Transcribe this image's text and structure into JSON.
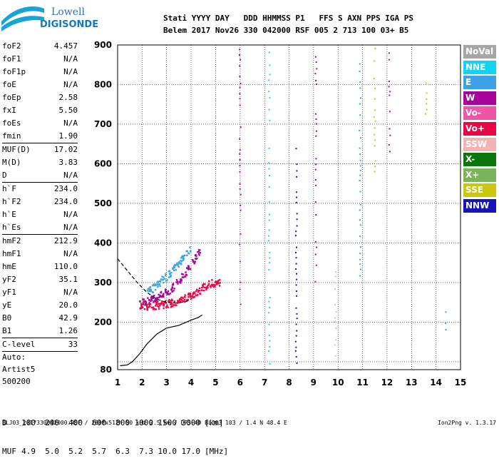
{
  "logo": {
    "line1": "Lowell",
    "line2": "DIGISONDE"
  },
  "header": {
    "line1": "Stati YYYY DAY   DDD HHMMSS P1   FFS S AXN PPS IGA PS",
    "line2": "Belem 2017 Nov26 330 042000 RSF 005 2 713 100 03+ B5"
  },
  "params": [
    {
      "name": "foF2",
      "value": "4.457"
    },
    {
      "name": "foF1",
      "value": "N/A"
    },
    {
      "name": "foF1p",
      "value": "N/A"
    },
    {
      "name": "foE",
      "value": "N/A"
    },
    {
      "name": "foEp",
      "value": "2.58"
    },
    {
      "name": "fxI",
      "value": "5.50"
    },
    {
      "name": "foEs",
      "value": "N/A"
    },
    {
      "name": "fmin",
      "value": "1.90"
    },
    {
      "sep": true
    },
    {
      "name": "MUF(D)",
      "value": "17.02"
    },
    {
      "name": "M(D)",
      "value": "3.83"
    },
    {
      "name": "D",
      "value": "N/A"
    },
    {
      "sep": true
    },
    {
      "name": "h`F",
      "value": "234.0"
    },
    {
      "name": "h`F2",
      "value": "234.0"
    },
    {
      "name": "h`E",
      "value": "N/A"
    },
    {
      "name": "h`Es",
      "value": "N/A"
    },
    {
      "sep": true
    },
    {
      "name": "hmF2",
      "value": "212.9"
    },
    {
      "name": "hmF1",
      "value": "N/A"
    },
    {
      "name": "hmE",
      "value": "110.0"
    },
    {
      "name": "yF2",
      "value": "35.1"
    },
    {
      "name": "yF1",
      "value": "N/A"
    },
    {
      "name": "yE",
      "value": "20.0"
    },
    {
      "name": "B0",
      "value": "42.9"
    },
    {
      "name": "B1",
      "value": "1.26"
    },
    {
      "sep": true
    },
    {
      "name": "C-level",
      "value": "33"
    },
    {
      "sep": true
    },
    {
      "text": "Auto:"
    },
    {
      "text": "Artist5"
    },
    {
      "text": "500200"
    }
  ],
  "legend": [
    {
      "label": "NoVal",
      "color": "#a6a6a6"
    },
    {
      "label": "NNE",
      "color": "#11d4f4"
    },
    {
      "label": "E",
      "color": "#3da1e6"
    },
    {
      "label": "W",
      "color": "#a6049b"
    },
    {
      "label": "Vo-",
      "color": "#f055a8"
    },
    {
      "label": "Vo+",
      "color": "#ea0644"
    },
    {
      "label": "SSW",
      "color": "#f2b3b3"
    },
    {
      "label": "X-",
      "color": "#0a760a"
    },
    {
      "label": "X+",
      "color": "#7ab55c"
    },
    {
      "label": "SSE",
      "color": "#c9c70e"
    },
    {
      "label": "NNW",
      "color": "#1414b8"
    }
  ],
  "dmuf": {
    "d_label": "D",
    "d_values": [
      "100",
      "200",
      "400",
      "600",
      "800",
      "1000",
      "1500",
      "3000"
    ],
    "d_unit": "[km]",
    "muf_label": "MUF",
    "muf_values": [
      "4.9",
      "5.0",
      "5.2",
      "5.7",
      "6.3",
      "7.3",
      "10.0",
      "17.0"
    ],
    "muf_unit": "[MHz]"
  },
  "footer": {
    "info": "BLJ03_2017330042000.RSF / 280fx512h 50 kHz 2.5 km / DPS-4D BLJ03 103 / 1.4 N 48.4 E",
    "version": "Ion2Png v. 1.3.17"
  },
  "chart_data": {
    "type": "scatter",
    "xlabel": "",
    "ylabel": "",
    "xlim": [
      1,
      15
    ],
    "ylim": [
      80,
      900
    ],
    "x_ticks": [
      1,
      2,
      3,
      4,
      5,
      6,
      7,
      8,
      9,
      10,
      11,
      12,
      13,
      14,
      15
    ],
    "y_ticks": [
      80,
      100,
      200,
      300,
      400,
      500,
      600,
      700,
      800,
      900
    ],
    "y_tick_labels": [
      80,
      200,
      300,
      400,
      500,
      600,
      700,
      800,
      900
    ],
    "grid": true,
    "legend_position": "right",
    "traces": [
      {
        "series": "Vo+",
        "color": "#ea0644",
        "x": [
          1.9,
          2.0,
          2.2,
          2.4,
          2.6,
          2.8,
          3.0,
          3.2,
          3.4,
          3.6,
          3.8,
          4.0,
          4.2,
          4.4,
          4.6,
          4.8,
          5.0,
          5.2
        ],
        "y": [
          240,
          236,
          234,
          236,
          238,
          240,
          242,
          244,
          246,
          250,
          256,
          262,
          270,
          278,
          286,
          292,
          296,
          298
        ]
      },
      {
        "series": "W",
        "color": "#a6049b",
        "x": [
          2.0,
          2.2,
          2.4,
          2.6,
          2.8,
          3.0,
          3.2,
          3.4,
          3.6,
          3.8,
          4.0,
          4.2,
          4.4
        ],
        "y": [
          244,
          248,
          252,
          258,
          264,
          270,
          280,
          292,
          306,
          322,
          340,
          360,
          380
        ]
      },
      {
        "series": "E",
        "color": "#3da1e6",
        "x": [
          2.2,
          2.4,
          2.6,
          2.8,
          3.0,
          3.2,
          3.4,
          3.6,
          3.8,
          4.0
        ],
        "y": [
          270,
          278,
          290,
          300,
          310,
          322,
          336,
          350,
          366,
          384
        ]
      }
    ],
    "columns": [
      {
        "series": "W",
        "color": "#a6049b",
        "x": 6.0,
        "y_range": [
          240,
          900
        ]
      },
      {
        "series": "NNE",
        "color": "#11d4f4",
        "x": 7.2,
        "y_range": [
          80,
          890
        ]
      },
      {
        "series": "NNW",
        "color": "#1414b8",
        "x": 8.3,
        "y_range": [
          80,
          650
        ]
      },
      {
        "series": "W",
        "color": "#a6049b",
        "x": 9.1,
        "y_range": [
          300,
          880
        ]
      },
      {
        "series": "SSW",
        "color": "#f2b3b3",
        "x": 9.9,
        "y_range": [
          110,
          340
        ]
      },
      {
        "series": "E",
        "color": "#3da1e6",
        "x": 10.9,
        "y_range": [
          300,
          860
        ]
      },
      {
        "series": "SSE",
        "color": "#c9c70e",
        "x": 11.5,
        "y_range": [
          560,
          900
        ]
      },
      {
        "series": "W",
        "color": "#a6049b",
        "x": 12.1,
        "y_range": [
          630,
          890
        ]
      },
      {
        "series": "SSE",
        "color": "#c9c70e",
        "x": 13.6,
        "y_range": [
          720,
          840
        ]
      },
      {
        "series": "E",
        "color": "#3da1e6",
        "x": 14.4,
        "y_range": [
          180,
          240
        ]
      }
    ],
    "profile": {
      "solid": {
        "x": [
          1.1,
          1.4,
          1.6,
          1.9,
          2.2,
          2.6,
          3.0,
          3.5,
          4.0,
          4.3,
          4.45
        ],
        "y": [
          90,
          92,
          100,
          120,
          145,
          170,
          185,
          192,
          205,
          212,
          218
        ]
      },
      "dashed": {
        "x": [
          1.0,
          1.4,
          1.8,
          2.2,
          2.6,
          3.0,
          3.4,
          3.8,
          4.0
        ],
        "y": [
          360,
          330,
          300,
          275,
          258,
          250,
          248,
          252,
          258
        ]
      }
    }
  }
}
